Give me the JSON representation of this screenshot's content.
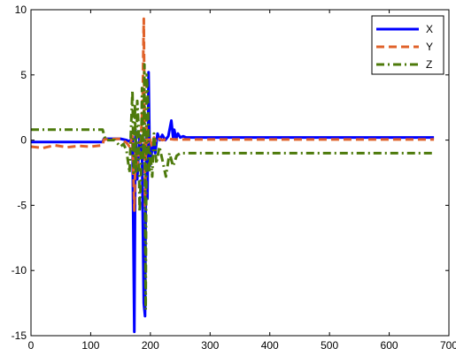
{
  "chart_data": {
    "type": "line",
    "title": "",
    "xlabel": "",
    "ylabel": "",
    "xlim": [
      0,
      700
    ],
    "ylim": [
      -15,
      10
    ],
    "xticks": [
      0,
      100,
      200,
      300,
      400,
      500,
      600,
      700
    ],
    "yticks": [
      -15,
      -10,
      -5,
      0,
      5,
      10
    ],
    "grid": false,
    "legend_position": "top-right",
    "series": [
      {
        "name": "X",
        "color": "#0000ff",
        "dash": "solid",
        "x": [
          0,
          120,
          122,
          150,
          160,
          165,
          170,
          173,
          175,
          178,
          182,
          186,
          189,
          191,
          193,
          195,
          197,
          199,
          201,
          204,
          208,
          212,
          216,
          220,
          225,
          230,
          235,
          238,
          240,
          243,
          246,
          250,
          255,
          260,
          270,
          300,
          400,
          500,
          600,
          675
        ],
        "y": [
          -0.15,
          -0.15,
          0.1,
          0.1,
          0.0,
          -0.1,
          0.2,
          -14.7,
          0.8,
          -3.0,
          0.4,
          -1.0,
          -12.5,
          -13.5,
          0.5,
          -4.5,
          5.2,
          -2.0,
          -1.5,
          -0.2,
          -1.0,
          0.5,
          0.0,
          0.4,
          0.0,
          0.3,
          1.5,
          0.2,
          0.8,
          0.1,
          0.5,
          0.2,
          0.3,
          0.2,
          0.2,
          0.2,
          0.2,
          0.2,
          0.2,
          0.2
        ]
      },
      {
        "name": "Y",
        "color": "#e0622a",
        "dash": "dashed",
        "x": [
          0,
          20,
          40,
          60,
          80,
          100,
          120,
          122,
          150,
          160,
          165,
          170,
          173,
          175,
          178,
          181,
          184,
          187,
          189,
          191,
          193,
          195,
          198,
          202,
          206,
          210,
          215,
          220,
          230,
          240,
          260,
          300,
          400,
          500,
          600,
          675
        ],
        "y": [
          -0.5,
          -0.6,
          -0.4,
          -0.55,
          -0.45,
          -0.5,
          -0.4,
          0.05,
          0.1,
          -0.2,
          -0.5,
          0.3,
          -5.4,
          -1.0,
          -2.0,
          -0.5,
          0.0,
          3.0,
          9.3,
          -5.0,
          1.2,
          -0.2,
          0.3,
          -0.4,
          0.2,
          -0.2,
          0.1,
          0.0,
          0.1,
          0.05,
          0.05,
          0.05,
          0.05,
          0.05,
          0.05,
          0.05
        ]
      },
      {
        "name": "Z",
        "color": "#4d7a0b",
        "dash": "dashdot",
        "x": [
          0,
          115,
          120,
          125,
          140,
          150,
          155,
          160,
          165,
          168,
          170,
          172,
          174,
          176,
          178,
          180,
          182,
          184,
          186,
          188,
          190,
          192,
          194,
          196,
          198,
          200,
          203,
          206,
          210,
          215,
          220,
          226,
          232,
          238,
          244,
          250,
          260,
          300,
          400,
          500,
          600,
          675
        ],
        "y": [
          0.8,
          0.8,
          0.8,
          0.0,
          0.0,
          -0.5,
          -0.3,
          -0.8,
          -2.5,
          1.5,
          3.8,
          -2.5,
          2.8,
          -2.5,
          3.0,
          1.2,
          -5.5,
          -3.0,
          4.0,
          -1.5,
          5.8,
          -13.0,
          5.0,
          2.8,
          -2.5,
          -1.0,
          -2.8,
          0.5,
          -1.8,
          -0.5,
          -1.5,
          -2.8,
          -1.0,
          -2.0,
          -1.2,
          -1.0,
          -1.0,
          -1.0,
          -1.0,
          -1.0,
          -1.0,
          -1.0
        ]
      }
    ]
  }
}
